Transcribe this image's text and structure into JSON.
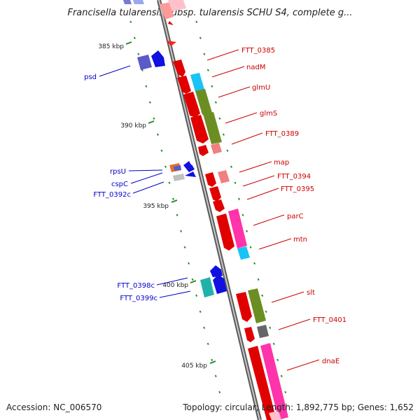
{
  "title": "Francisella tularensis subsp. tularensis SCHU S4, complete g...",
  "footer": {
    "accession": "Accession: NC_006570",
    "summary": "Topology: circular; Length: 1,892,775 bp; Genes: 1,652"
  },
  "colors": {
    "forward_label": "#cc0000",
    "reverse_label": "#0000cc",
    "tick": "#228b22",
    "backbone": "#8a8a8a"
  },
  "scale_markers": [
    "385 kbp",
    "390 kbp",
    "395 kbp",
    "400 kbp",
    "405 kbp"
  ],
  "genes": {
    "forward": [
      "FTT_0385",
      "nadM",
      "glmU",
      "glmS",
      "FTT_0389",
      "map",
      "FTT_0394",
      "FTT_0395",
      "parC",
      "mtn",
      "slt",
      "FTT_0401",
      "dnaE"
    ],
    "reverse": [
      "psd",
      "rpsU",
      "cspC",
      "FTT_0392c",
      "FTT_0398c",
      "FTT_0399c"
    ]
  }
}
